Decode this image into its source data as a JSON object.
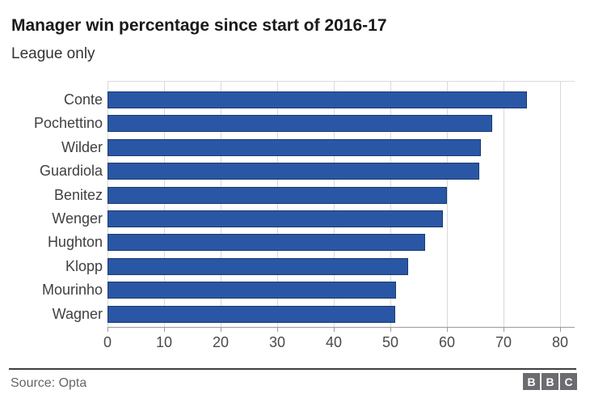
{
  "title": "Manager win percentage since start of 2016-17",
  "subtitle": "League only",
  "footer": {
    "source": "Source: Opta",
    "logo_letters": [
      "B",
      "B",
      "C"
    ]
  },
  "colors": {
    "bar": "#2a57a5",
    "bar_border": "#1b3c6e",
    "gridline": "#d9d9d9",
    "axis_line": "#9b9b9b",
    "category_text": "#414042",
    "tick_text": "#4a4a4a",
    "title_text": "#1a1a1a",
    "source_text": "#666666",
    "logo_background": "#6b6b70",
    "footer_line": "#404040"
  },
  "chart_data": {
    "type": "bar",
    "orientation": "horizontal",
    "title": "Manager win percentage since start of 2016-17",
    "subtitle": "League only",
    "xlabel": "",
    "ylabel": "",
    "categories": [
      "Conte",
      "Pochettino",
      "Wilder",
      "Guardiola",
      "Benitez",
      "Wenger",
      "Hughton",
      "Klopp",
      "Mourinho",
      "Wagner"
    ],
    "values": [
      74.2,
      68.0,
      66.0,
      65.7,
      60.0,
      59.3,
      56.2,
      53.1,
      51.0,
      50.8
    ],
    "xlim": [
      0,
      80
    ],
    "xticks": [
      0,
      10,
      20,
      30,
      40,
      50,
      60,
      70,
      80
    ],
    "grid": true,
    "legend": false,
    "source": "Opta"
  }
}
